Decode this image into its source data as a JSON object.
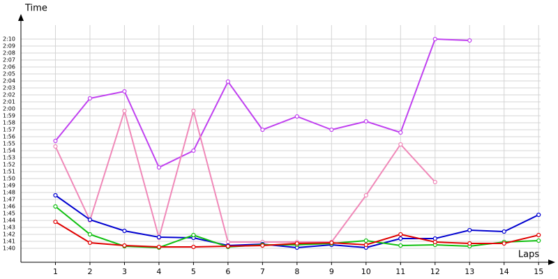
{
  "chart_data": {
    "type": "line",
    "x_label": "Laps",
    "y_label": "Time",
    "x": [
      1,
      2,
      3,
      4,
      5,
      6,
      7,
      8,
      9,
      10,
      11,
      12,
      13,
      14,
      15
    ],
    "xlim": [
      0,
      15.4
    ],
    "xticks": [
      1,
      2,
      3,
      4,
      5,
      6,
      7,
      8,
      9,
      10,
      11,
      12,
      13,
      14,
      15
    ],
    "ylim": [
      98,
      134
    ],
    "yticks": [
      {
        "value": 100,
        "label": "1:40"
      },
      {
        "value": 101,
        "label": "1:41"
      },
      {
        "value": 102,
        "label": "1:42"
      },
      {
        "value": 103,
        "label": "1:43"
      },
      {
        "value": 104,
        "label": "1:44"
      },
      {
        "value": 105,
        "label": "1:45"
      },
      {
        "value": 106,
        "label": "1:46"
      },
      {
        "value": 107,
        "label": "1:47"
      },
      {
        "value": 108,
        "label": "1:48"
      },
      {
        "value": 109,
        "label": "1:49"
      },
      {
        "value": 110,
        "label": "1:50"
      },
      {
        "value": 111,
        "label": "1:51"
      },
      {
        "value": 112,
        "label": "1:52"
      },
      {
        "value": 113,
        "label": "1:53"
      },
      {
        "value": 114,
        "label": "1:54"
      },
      {
        "value": 115,
        "label": "1:55"
      },
      {
        "value": 116,
        "label": "1:56"
      },
      {
        "value": 117,
        "label": "1:57"
      },
      {
        "value": 118,
        "label": "1:58"
      },
      {
        "value": 119,
        "label": "1:59"
      },
      {
        "value": 120,
        "label": "2:00"
      },
      {
        "value": 121,
        "label": "2:01"
      },
      {
        "value": 122,
        "label": "2:02"
      },
      {
        "value": 123,
        "label": "2:03"
      },
      {
        "value": 124,
        "label": "2:04"
      },
      {
        "value": 125,
        "label": "2:05"
      },
      {
        "value": 126,
        "label": "2:06"
      },
      {
        "value": 127,
        "label": "2:07"
      },
      {
        "value": 128,
        "label": "2:08"
      },
      {
        "value": 129,
        "label": "2:09"
      },
      {
        "value": 130,
        "label": "2:10"
      }
    ],
    "grid": true,
    "series": [
      {
        "color": "#c040f0",
        "values": [
          115.4,
          121.5,
          122.5,
          111.6,
          114,
          123.9,
          117,
          118.9,
          117,
          118.2,
          116.6,
          130,
          129.8,
          null,
          null
        ]
      },
      {
        "color": "#f088b8",
        "values": [
          114.6,
          104,
          119.7,
          101.5,
          119.7,
          100.9,
          100.9,
          100.9,
          100.9,
          107.6,
          114.9,
          109.5,
          null,
          null,
          null
        ]
      },
      {
        "color": "#0000d0",
        "values": [
          107.6,
          104.1,
          102.5,
          101.6,
          101.5,
          100.4,
          100.6,
          100.1,
          100.5,
          100.1,
          101.4,
          101.4,
          102.6,
          102.4,
          104.8
        ]
      },
      {
        "color": "#10c010",
        "values": [
          106,
          102,
          100.3,
          100.1,
          101.9,
          100.2,
          100.5,
          100.5,
          100.7,
          101.1,
          100.4,
          100.5,
          100.3,
          100.9,
          101.1
        ]
      },
      {
        "color": "#e00000",
        "values": [
          103.8,
          100.8,
          100.4,
          100.2,
          100.2,
          100.3,
          100.4,
          100.7,
          100.8,
          100.5,
          102,
          100.9,
          100.7,
          100.7,
          101.9
        ]
      }
    ]
  }
}
